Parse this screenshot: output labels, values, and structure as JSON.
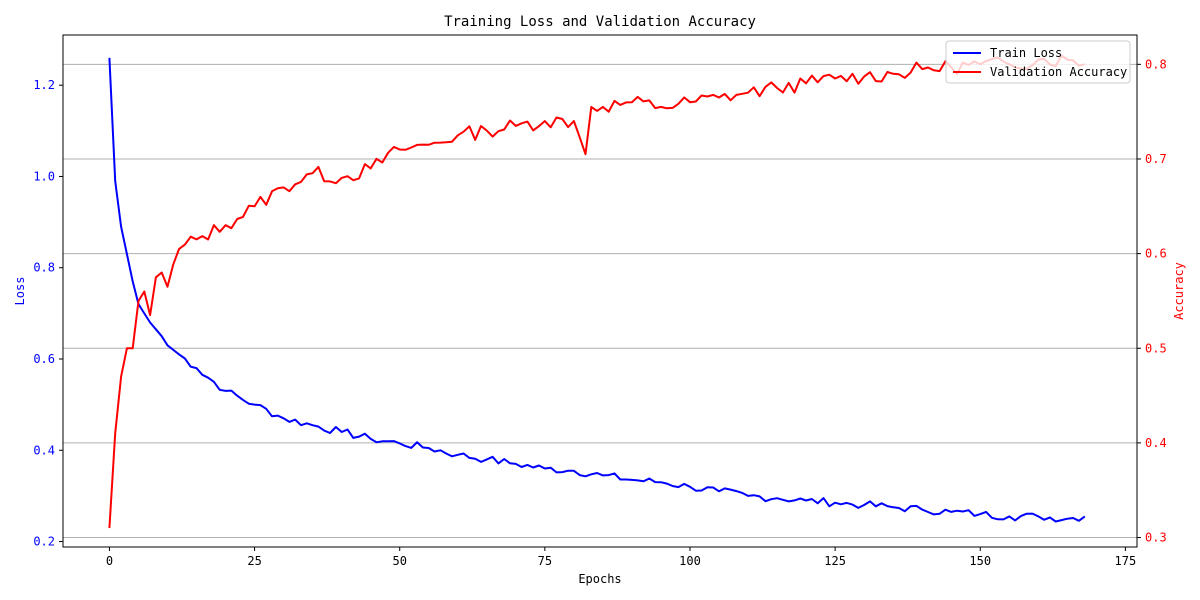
{
  "chart_data": {
    "type": "line",
    "title": "Training Loss and Validation Accuracy",
    "xlabel": "Epochs",
    "ylabel_left": "Loss",
    "ylabel_right": "Accuracy",
    "xlim": [
      -8,
      177
    ],
    "ylim_left": [
      0.188,
      1.31
    ],
    "ylim_right": [
      0.29,
      0.831
    ],
    "xticks": [
      0,
      25,
      50,
      75,
      100,
      125,
      150,
      175
    ],
    "yticks_left": [
      0.2,
      0.4,
      0.6,
      0.8,
      1.0,
      1.2
    ],
    "yticks_right": [
      0.3,
      0.4,
      0.5,
      0.6,
      0.7,
      0.8
    ],
    "grid": "horizontal lines on right axis",
    "legend_position": "top-right",
    "colors": {
      "loss": "#0000ff",
      "accuracy": "#ff0000",
      "grid": "#b0b0b0"
    },
    "series": [
      {
        "name": "Train Loss",
        "axis": "left",
        "anchors_x": [
          0,
          1,
          2,
          3,
          4,
          5,
          6,
          7,
          8,
          9,
          10,
          12,
          15,
          20,
          25,
          30,
          35,
          40,
          45,
          50,
          55,
          60,
          65,
          70,
          75,
          80,
          85,
          90,
          95,
          100,
          105,
          110,
          115,
          120,
          125,
          130,
          135,
          140,
          145,
          150,
          155,
          160,
          165,
          168
        ],
        "anchors_y": [
          1.26,
          0.99,
          0.89,
          0.83,
          0.77,
          0.72,
          0.7,
          0.68,
          0.665,
          0.65,
          0.63,
          0.61,
          0.58,
          0.53,
          0.5,
          0.47,
          0.455,
          0.44,
          0.425,
          0.415,
          0.405,
          0.39,
          0.38,
          0.37,
          0.36,
          0.355,
          0.345,
          0.335,
          0.33,
          0.32,
          0.31,
          0.3,
          0.295,
          0.29,
          0.285,
          0.28,
          0.275,
          0.27,
          0.265,
          0.26,
          0.255,
          0.255,
          0.25,
          0.255
        ]
      },
      {
        "name": "Validation Accuracy",
        "axis": "right",
        "anchors_x": [
          0,
          1,
          2,
          3,
          4,
          5,
          6,
          7,
          8,
          9,
          10,
          12,
          15,
          20,
          25,
          30,
          35,
          40,
          45,
          50,
          55,
          60,
          65,
          70,
          75,
          80,
          82,
          83,
          85,
          90,
          95,
          100,
          105,
          110,
          115,
          120,
          125,
          130,
          135,
          140,
          145,
          150,
          155,
          160,
          165,
          168
        ],
        "anchors_y": [
          0.31,
          0.41,
          0.47,
          0.5,
          0.5,
          0.55,
          0.56,
          0.535,
          0.575,
          0.58,
          0.565,
          0.605,
          0.615,
          0.63,
          0.65,
          0.67,
          0.685,
          0.68,
          0.69,
          0.71,
          0.715,
          0.725,
          0.73,
          0.735,
          0.74,
          0.74,
          0.705,
          0.755,
          0.755,
          0.76,
          0.755,
          0.76,
          0.765,
          0.77,
          0.775,
          0.78,
          0.785,
          0.787,
          0.79,
          0.795,
          0.797,
          0.8,
          0.8,
          0.805,
          0.805,
          0.8
        ]
      }
    ]
  }
}
